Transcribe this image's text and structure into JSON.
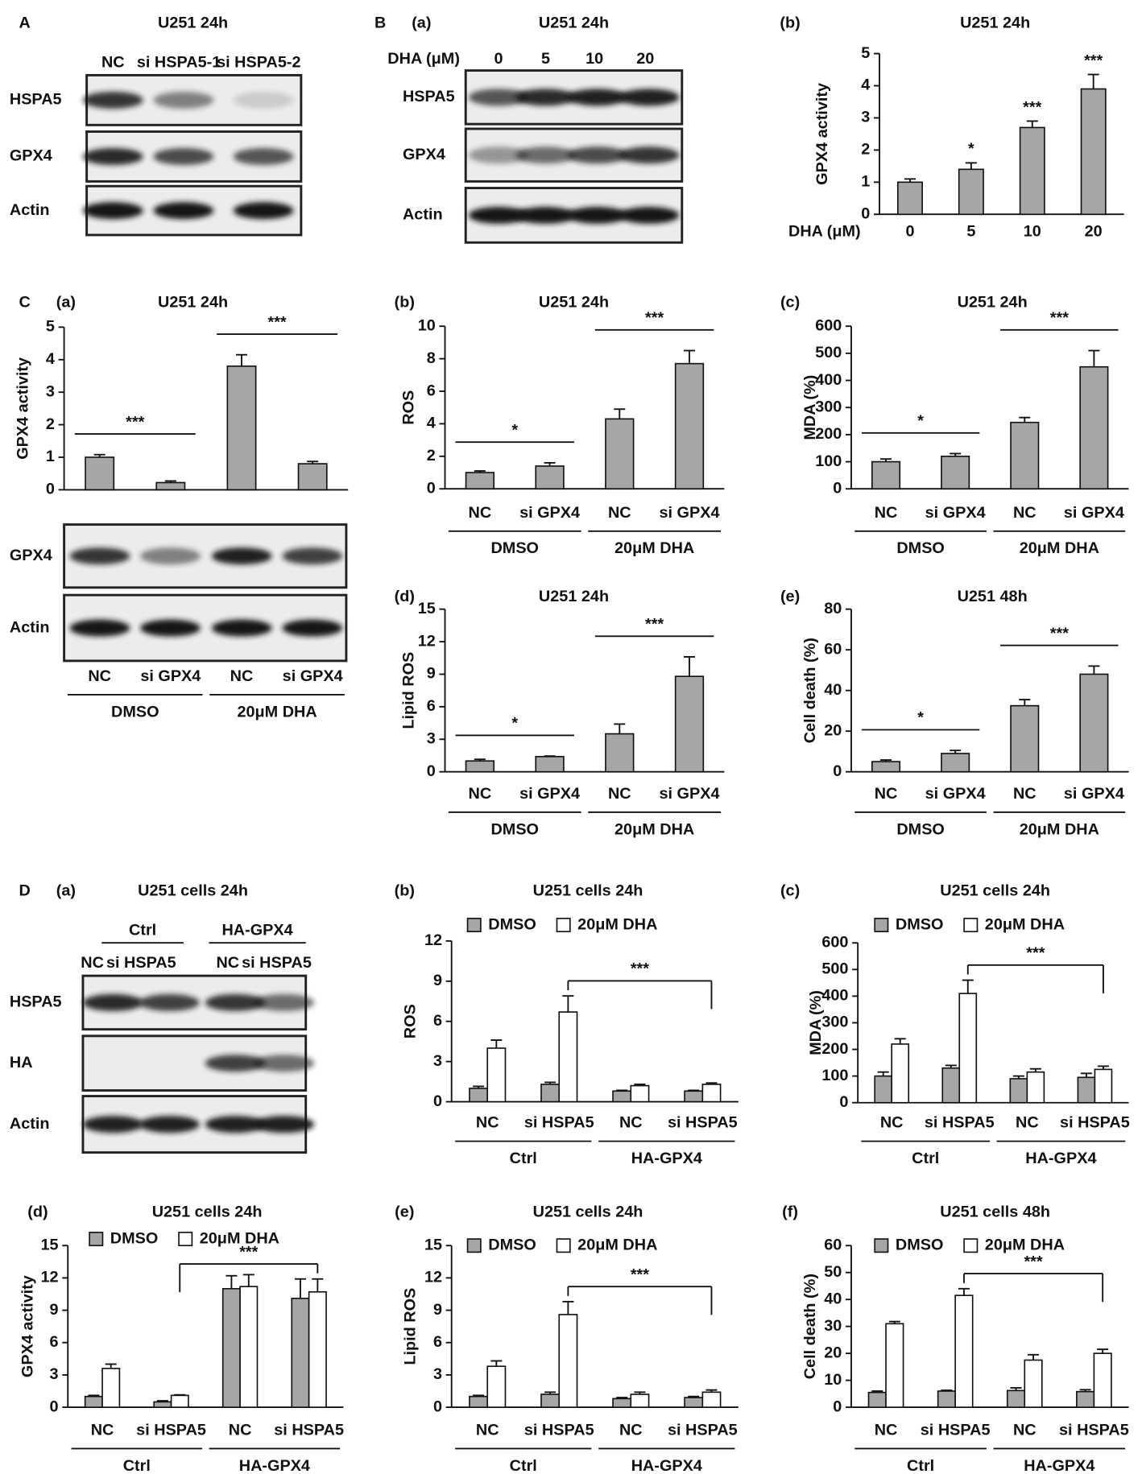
{
  "blots": [
    {
      "section": "A",
      "title": "U251  24h",
      "lanes": [
        "NC",
        "si HSPA5-1",
        "si HSPA5-2"
      ],
      "rows": [
        "HSPA5",
        "GPX4",
        "Actin"
      ]
    },
    {
      "section": "B",
      "panel": "(a)",
      "title": "U251  24h",
      "lane_label": "DHA (μM)",
      "lanes": [
        "0",
        "5",
        "10",
        "20"
      ],
      "rows": [
        "HSPA5",
        "GPX4",
        "Actin"
      ]
    },
    {
      "section": "C",
      "rows": [
        "GPX4",
        "Actin"
      ]
    },
    {
      "section": "D",
      "panel": "(a)",
      "title": "U251 cells 24h",
      "groups": [
        "Ctrl",
        "HA-GPX4"
      ],
      "lanes": [
        "NC",
        "si HSPA5",
        "NC",
        "si HSPA5"
      ],
      "rows": [
        "HSPA5",
        "HA",
        "Actin"
      ]
    }
  ],
  "chart_data": [
    {
      "type": "bar",
      "panel": "(b)",
      "title": "U251  24h",
      "ylabel": "GPX4 activity",
      "xlabel": "DHA (μM)",
      "categories": [
        "0",
        "5",
        "10",
        "20"
      ],
      "values": [
        1,
        1.4,
        2.7,
        3.9
      ],
      "errors": [
        0.1,
        0.2,
        0.2,
        0.45
      ],
      "value_annotations": [
        null,
        "*",
        "***",
        "***"
      ],
      "color": "#a6a6a6",
      "ylim": [
        0,
        5
      ],
      "yticks": [
        0,
        1,
        2,
        3,
        4,
        5
      ]
    },
    {
      "type": "bar",
      "panel": "(a)",
      "title": "U251  24h",
      "ylabel": "GPX4 activity",
      "categories": [
        "NC",
        "si GPX4",
        "NC",
        "si GPX4"
      ],
      "groups": [
        "DMSO",
        "20μM DHA"
      ],
      "values": [
        1,
        0.22,
        3.8,
        0.8
      ],
      "errors": [
        0.08,
        0.05,
        0.35,
        0.07
      ],
      "color": "#a6a6a6",
      "ylim": [
        0,
        5
      ],
      "yticks": [
        0,
        1,
        2,
        3,
        4,
        5
      ],
      "brackets": [
        {
          "text": "***",
          "from": 0,
          "to": 1
        },
        {
          "text": "***",
          "from": 2,
          "to": 3
        }
      ]
    },
    {
      "type": "bar",
      "panel": "(b)",
      "title": "U251  24h",
      "ylabel": "ROS",
      "categories": [
        "NC",
        "si GPX4",
        "NC",
        "si GPX4"
      ],
      "groups": [
        "DMSO",
        "20μM DHA"
      ],
      "values": [
        1,
        1.4,
        4.3,
        7.7
      ],
      "errors": [
        0.1,
        0.2,
        0.6,
        0.8
      ],
      "color": "#a6a6a6",
      "ylim": [
        0,
        10
      ],
      "yticks": [
        0,
        2,
        4,
        6,
        8,
        10
      ],
      "brackets": [
        {
          "text": "*",
          "from": 0,
          "to": 1
        },
        {
          "text": "***",
          "from": 2,
          "to": 3
        }
      ]
    },
    {
      "type": "bar",
      "panel": "(c)",
      "title": "U251  24h",
      "ylabel": "MDA (%)",
      "categories": [
        "NC",
        "si GPX4",
        "NC",
        "si GPX4"
      ],
      "groups": [
        "DMSO",
        "20μM DHA"
      ],
      "values": [
        100,
        120,
        245,
        450
      ],
      "errors": [
        10,
        10,
        18,
        60
      ],
      "color": "#a6a6a6",
      "ylim": [
        0,
        600
      ],
      "yticks": [
        0,
        100,
        200,
        300,
        400,
        500,
        600
      ],
      "brackets": [
        {
          "text": "*",
          "from": 0,
          "to": 1
        },
        {
          "text": "***",
          "from": 2,
          "to": 3
        }
      ]
    },
    {
      "type": "bar",
      "panel": "(d)",
      "title": "U251  24h",
      "ylabel": "Lipid ROS",
      "categories": [
        "NC",
        "si GPX4",
        "NC",
        "si GPX4"
      ],
      "groups": [
        "DMSO",
        "20μM DHA"
      ],
      "values": [
        1,
        1.4,
        3.5,
        8.8
      ],
      "errors": [
        0.15,
        0.05,
        0.9,
        1.8
      ],
      "color": "#a6a6a6",
      "ylim": [
        0,
        15
      ],
      "yticks": [
        0,
        3,
        6,
        9,
        12,
        15
      ],
      "brackets": [
        {
          "text": "*",
          "from": 0,
          "to": 1
        },
        {
          "text": "***",
          "from": 2,
          "to": 3
        }
      ]
    },
    {
      "type": "bar",
      "panel": "(e)",
      "title": "U251  48h",
      "ylabel": "Cell death (%)",
      "categories": [
        "NC",
        "si GPX4",
        "NC",
        "si GPX4"
      ],
      "groups": [
        "DMSO",
        "20μM DHA"
      ],
      "values": [
        5,
        9,
        32.5,
        48
      ],
      "errors": [
        0.8,
        1.5,
        3,
        4
      ],
      "color": "#a6a6a6",
      "ylim": [
        0,
        80
      ],
      "yticks": [
        0,
        20,
        40,
        60,
        80
      ],
      "brackets": [
        {
          "text": "*",
          "from": 0,
          "to": 1
        },
        {
          "text": "***",
          "from": 2,
          "to": 3
        }
      ]
    },
    {
      "type": "bar",
      "panel": "(b)",
      "title": "U251 cells 24h",
      "ylabel": "ROS",
      "categories": [
        "NC",
        "si HSPA5",
        "NC",
        "si HSPA5"
      ],
      "groups": [
        "Ctrl",
        "HA-GPX4"
      ],
      "series": [
        {
          "name": "DMSO",
          "color": "#a6a6a6",
          "values": [
            1,
            1.3,
            0.8,
            0.8
          ],
          "errors": [
            0.15,
            0.15,
            0.05,
            0.05
          ]
        },
        {
          "name": "20μM DHA",
          "color": "#ffffff",
          "values": [
            4,
            6.7,
            1.2,
            1.3
          ],
          "errors": [
            0.6,
            1.2,
            0.1,
            0.1
          ]
        }
      ],
      "ylim": [
        0,
        12
      ],
      "yticks": [
        0,
        3,
        6,
        9,
        12
      ],
      "brackets": [
        {
          "text": "***",
          "from": 1,
          "to": 3,
          "series": 1
        }
      ]
    },
    {
      "type": "bar",
      "panel": "(c)",
      "title": "U251 cells 24h",
      "ylabel": "MDA (%)",
      "categories": [
        "NC",
        "si HSPA5",
        "NC",
        "si HSPA5"
      ],
      "groups": [
        "Ctrl",
        "HA-GPX4"
      ],
      "series": [
        {
          "name": "DMSO",
          "color": "#a6a6a6",
          "values": [
            100,
            130,
            90,
            95
          ],
          "errors": [
            15,
            10,
            10,
            15
          ]
        },
        {
          "name": "20μM DHA",
          "color": "#ffffff",
          "values": [
            220,
            410,
            115,
            125
          ],
          "errors": [
            20,
            50,
            12,
            12
          ]
        }
      ],
      "ylim": [
        0,
        600
      ],
      "yticks": [
        0,
        100,
        200,
        300,
        400,
        500,
        600
      ],
      "brackets": [
        {
          "text": "***",
          "from": 1,
          "to": 3,
          "series": 1
        }
      ]
    },
    {
      "type": "bar",
      "panel": "(d)",
      "title": "U251 cells 24h",
      "ylabel": "GPX4 activity",
      "categories": [
        "NC",
        "si HSPA5",
        "NC",
        "si HSPA5"
      ],
      "groups": [
        "Ctrl",
        "HA-GPX4"
      ],
      "series": [
        {
          "name": "DMSO",
          "color": "#a6a6a6",
          "values": [
            1,
            0.5,
            11,
            10.1
          ],
          "errors": [
            0.1,
            0.1,
            1.2,
            1.8
          ]
        },
        {
          "name": "20μM DHA",
          "color": "#ffffff",
          "values": [
            3.6,
            1.1,
            11.2,
            10.7
          ],
          "errors": [
            0.4,
            0.05,
            1.1,
            1.2
          ]
        }
      ],
      "ylim": [
        0,
        15
      ],
      "yticks": [
        0,
        3,
        6,
        9,
        12,
        15
      ],
      "brackets": [
        {
          "text": "***",
          "from": 1,
          "to": 3,
          "series": 1
        }
      ]
    },
    {
      "type": "bar",
      "panel": "(e)",
      "title": "U251 cells 24h",
      "ylabel": "Lipid ROS",
      "categories": [
        "NC",
        "si HSPA5",
        "NC",
        "si HSPA5"
      ],
      "groups": [
        "Ctrl",
        "HA-GPX4"
      ],
      "series": [
        {
          "name": "DMSO",
          "color": "#a6a6a6",
          "values": [
            1,
            1.2,
            0.8,
            0.9
          ],
          "errors": [
            0.1,
            0.2,
            0.1,
            0.1
          ]
        },
        {
          "name": "20μM DHA",
          "color": "#ffffff",
          "values": [
            3.8,
            8.6,
            1.2,
            1.4
          ],
          "errors": [
            0.5,
            1.2,
            0.2,
            0.2
          ]
        }
      ],
      "ylim": [
        0,
        15
      ],
      "yticks": [
        0,
        3,
        6,
        9,
        12,
        15
      ],
      "brackets": [
        {
          "text": "***",
          "from": 1,
          "to": 3,
          "series": 1
        }
      ]
    },
    {
      "type": "bar",
      "panel": "(f)",
      "title": "U251 cells 48h",
      "ylabel": "Cell death (%)",
      "categories": [
        "NC",
        "si HSPA5",
        "NC",
        "si HSPA5"
      ],
      "groups": [
        "Ctrl",
        "HA-GPX4"
      ],
      "series": [
        {
          "name": "DMSO",
          "color": "#a6a6a6",
          "values": [
            5.5,
            6,
            6.2,
            5.8
          ],
          "errors": [
            0.5,
            0.3,
            1,
            0.7
          ]
        },
        {
          "name": "20μM DHA",
          "color": "#ffffff",
          "values": [
            31,
            41.5,
            17.5,
            20
          ],
          "errors": [
            0.8,
            2.5,
            2,
            1.5
          ]
        }
      ],
      "ylim": [
        0,
        60
      ],
      "yticks": [
        0,
        10,
        20,
        30,
        40,
        50,
        60
      ],
      "brackets": [
        {
          "text": "***",
          "from": 1,
          "to": 3,
          "series": 1
        }
      ]
    }
  ]
}
